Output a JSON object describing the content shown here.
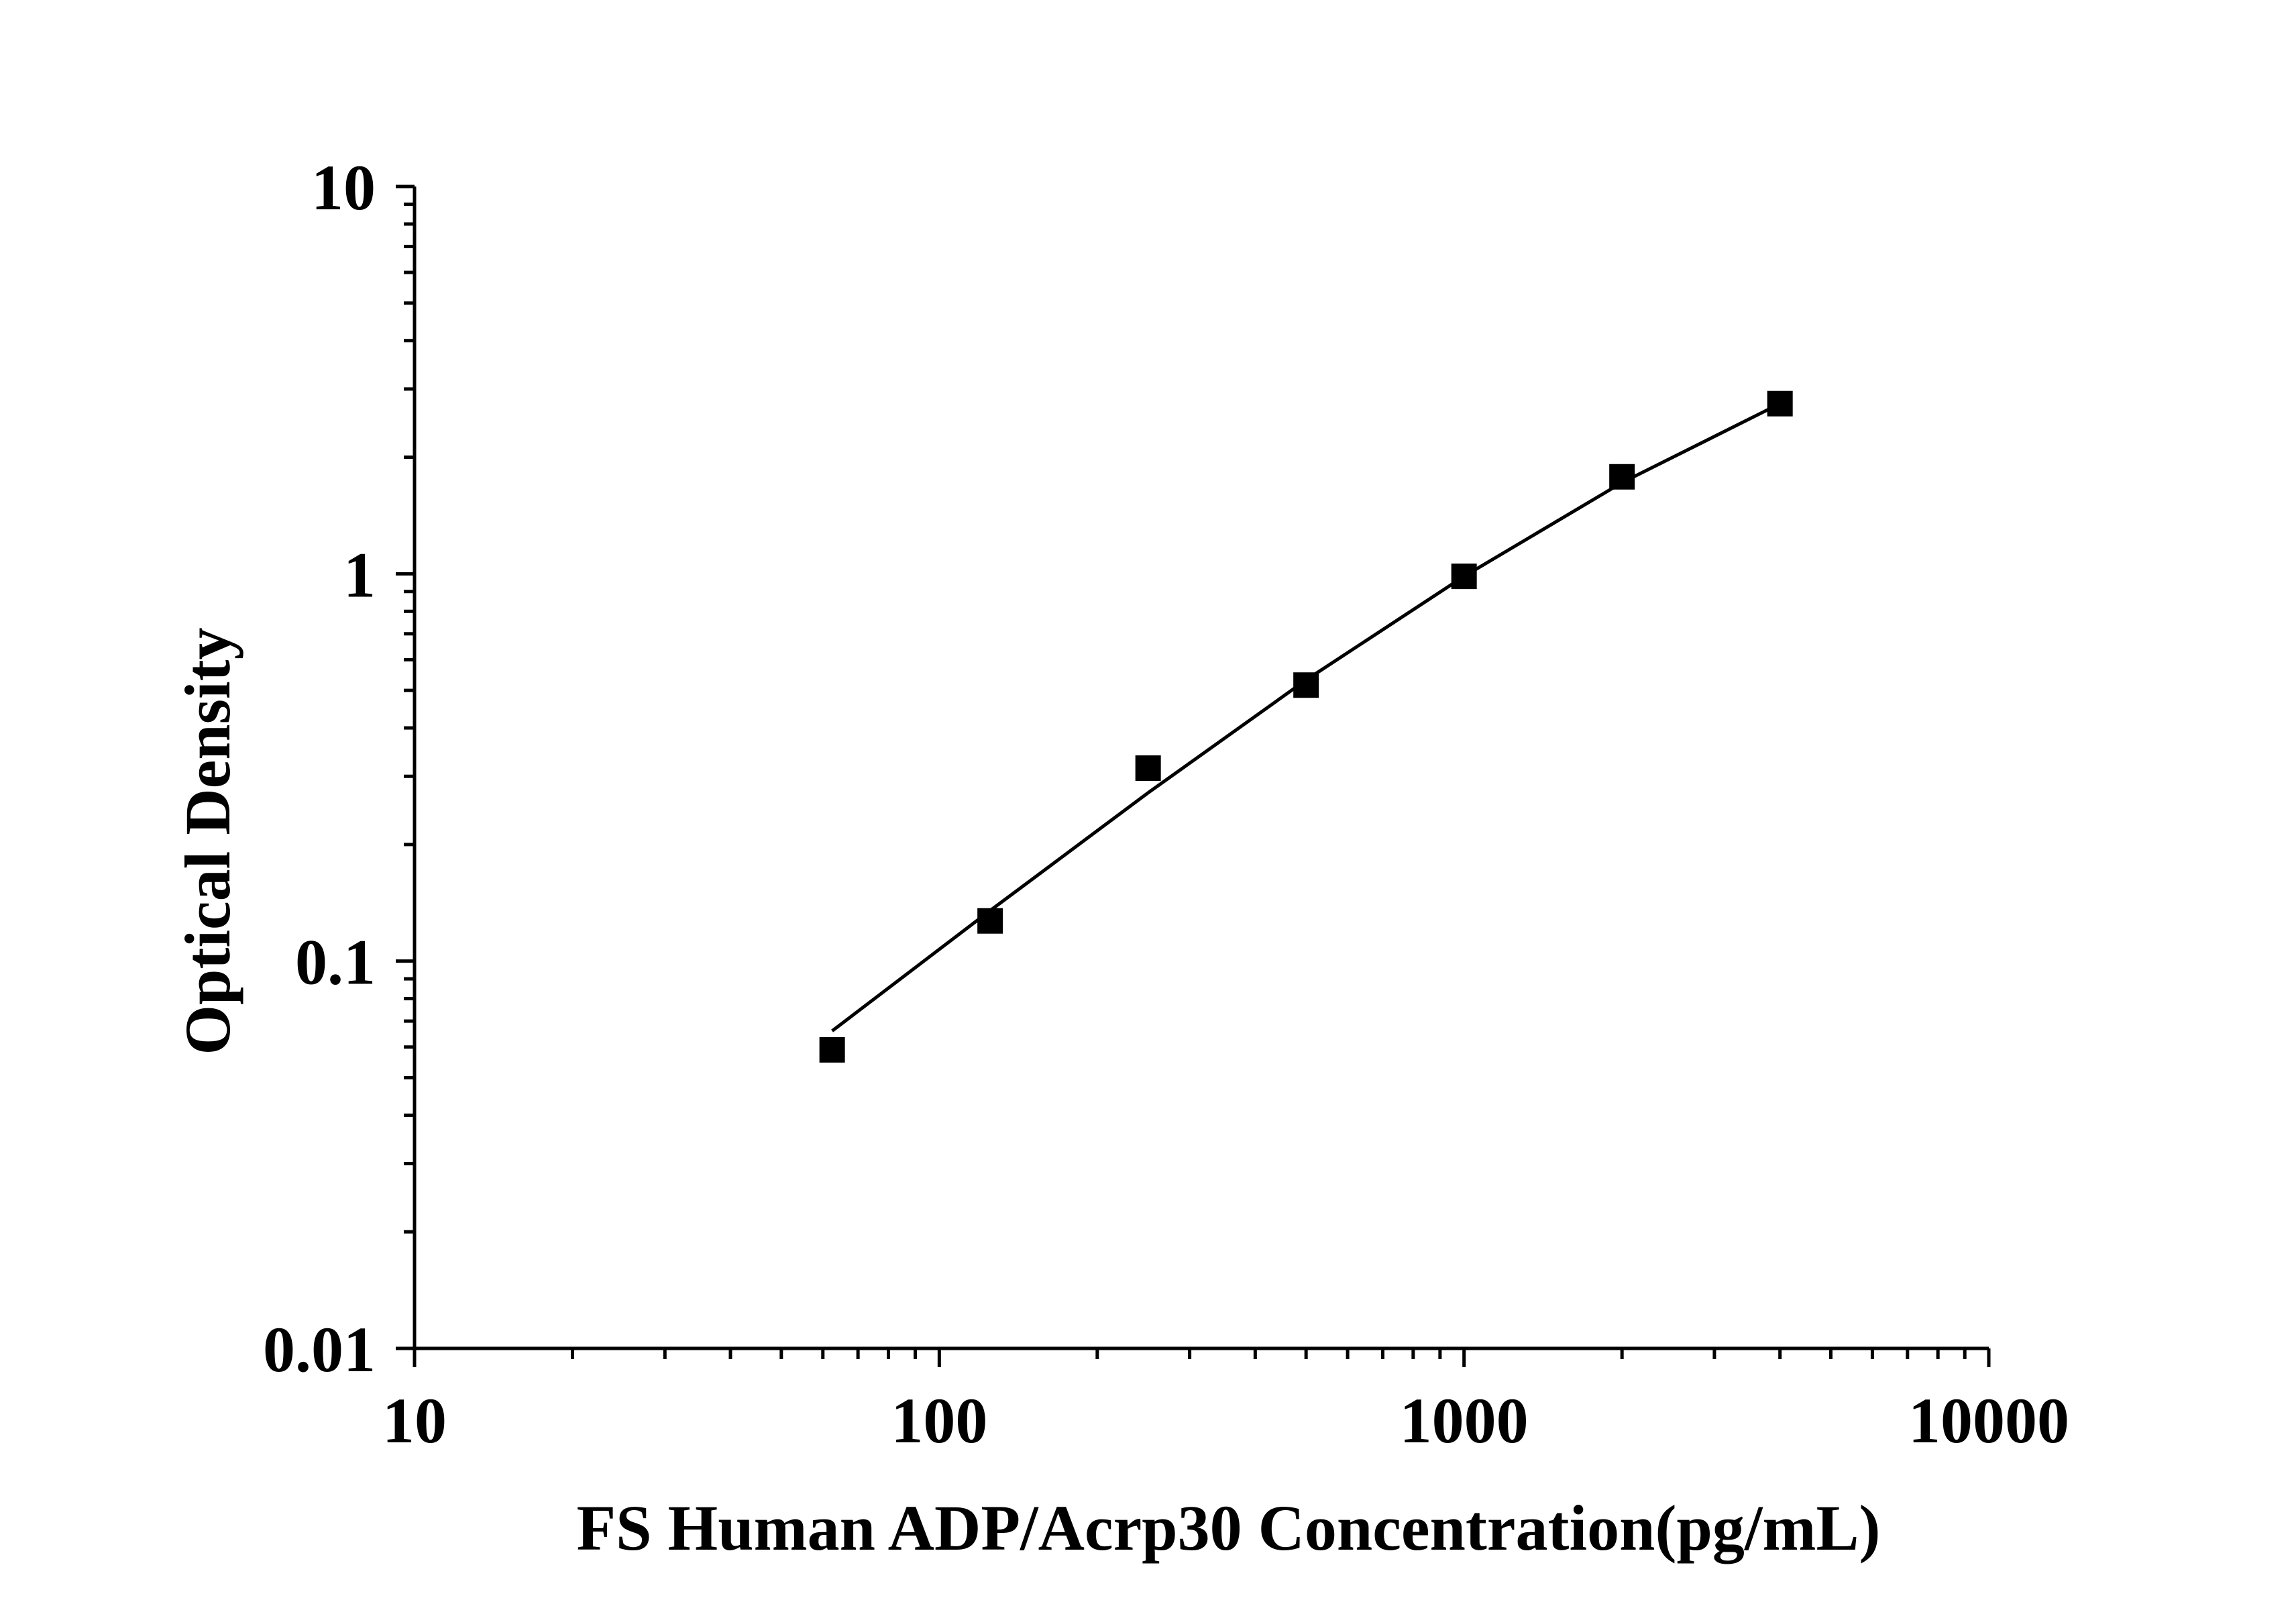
{
  "chart_data": {
    "type": "scatter",
    "title": "",
    "xlabel": "FS Human ADP/Acrp30 Concentration(pg/mL)",
    "ylabel": "Optical Density",
    "x_scale": "log",
    "y_scale": "log",
    "xlim": [
      10,
      10000
    ],
    "ylim": [
      0.01,
      10
    ],
    "x_ticks": [
      {
        "value": 10,
        "label": "10"
      },
      {
        "value": 100,
        "label": "100"
      },
      {
        "value": 1000,
        "label": "1000"
      },
      {
        "value": 10000,
        "label": "10000"
      }
    ],
    "y_ticks": [
      {
        "value": 0.01,
        "label": "0.01"
      },
      {
        "value": 0.1,
        "label": "0.1"
      },
      {
        "value": 1,
        "label": "1"
      },
      {
        "value": 10,
        "label": "10"
      }
    ],
    "grid": false,
    "series": [
      {
        "marker": "square",
        "color": "#000000",
        "points": [
          {
            "x": 62.5,
            "y": 0.059
          },
          {
            "x": 125,
            "y": 0.127
          },
          {
            "x": 250,
            "y": 0.315
          },
          {
            "x": 500,
            "y": 0.516
          },
          {
            "x": 1000,
            "y": 0.985
          },
          {
            "x": 2000,
            "y": 1.78
          },
          {
            "x": 4000,
            "y": 2.75
          }
        ]
      }
    ],
    "fit_line": {
      "color": "#000000",
      "points": [
        {
          "x": 62.5,
          "y": 0.066
        },
        {
          "x": 125,
          "y": 0.135
        },
        {
          "x": 250,
          "y": 0.272
        },
        {
          "x": 500,
          "y": 0.532
        },
        {
          "x": 1000,
          "y": 0.985
        },
        {
          "x": 2000,
          "y": 1.72
        },
        {
          "x": 4000,
          "y": 2.75
        }
      ]
    }
  }
}
